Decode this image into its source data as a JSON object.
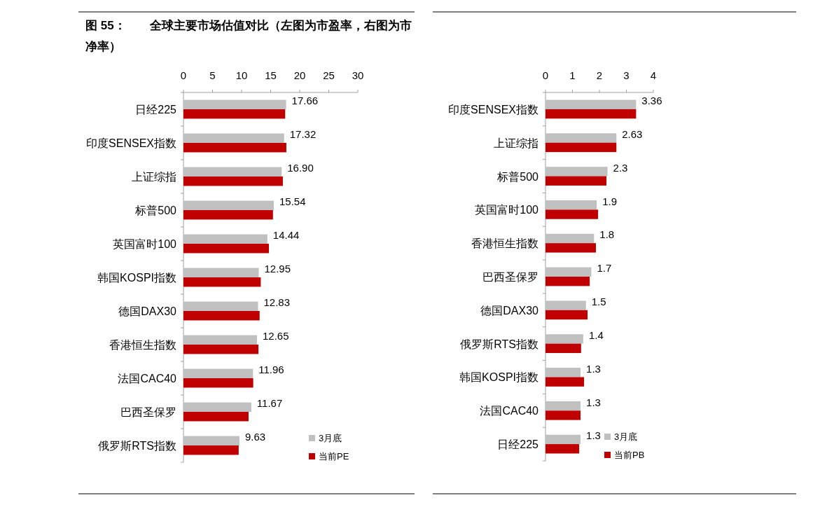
{
  "chart_data": [
    {
      "type": "bar",
      "orientation": "horizontal",
      "title": "图 55：　　全球主要市场估值对比（左图为市盈率，右图为市净率）",
      "categories": [
        "日经225",
        "印度SENSEX指数",
        "上证综指",
        "标普500",
        "英国富时100",
        "韩国KOSPI指数",
        "德国DAX30",
        "香港恒生指数",
        "法国CAC40",
        "巴西圣保罗",
        "俄罗斯RTS指数"
      ],
      "series": [
        {
          "name": "3月底",
          "color": "#c0c0c0",
          "values": [
            17.66,
            17.32,
            16.9,
            15.54,
            14.44,
            12.95,
            12.83,
            12.65,
            11.96,
            11.67,
            9.63
          ],
          "value_labels": [
            "17.66",
            "17.32",
            "16.90",
            "15.54",
            "14.44",
            "12.95",
            "12.83",
            "12.65",
            "11.96",
            "11.67",
            "9.63"
          ]
        },
        {
          "name": "当前PE",
          "color": "#c00000",
          "values": [
            17.5,
            17.7,
            17.1,
            15.4,
            14.7,
            13.3,
            13.1,
            12.9,
            12.0,
            11.2,
            9.5
          ]
        }
      ],
      "xlim": [
        0,
        30
      ],
      "xticks": [
        0,
        5,
        10,
        15,
        20,
        25,
        30
      ],
      "legend": "bottom right",
      "grid": false
    },
    {
      "type": "bar",
      "orientation": "horizontal",
      "categories": [
        "印度SENSEX指数",
        "上证综指",
        "标普500",
        "英国富时100",
        "香港恒生指数",
        "巴西圣保罗",
        "德国DAX30",
        "俄罗斯RTS指数",
        "韩国KOSPI指数",
        "法国CAC40",
        "日经225"
      ],
      "series": [
        {
          "name": "3月底",
          "color": "#c0c0c0",
          "values": [
            3.36,
            2.63,
            2.3,
            1.9,
            1.8,
            1.7,
            1.5,
            1.4,
            1.3,
            1.3,
            1.3
          ],
          "value_labels": [
            "3.36",
            "2.63",
            "2.3",
            "1.9",
            "1.8",
            "1.7",
            "1.5",
            "1.4",
            "1.3",
            "1.3",
            "1.3"
          ]
        },
        {
          "name": "当前PB",
          "color": "#c00000",
          "values": [
            3.36,
            2.63,
            2.26,
            1.95,
            1.87,
            1.64,
            1.56,
            1.32,
            1.43,
            1.3,
            1.25
          ]
        }
      ],
      "xlim": [
        0,
        4
      ],
      "xticks": [
        0,
        1,
        2,
        3,
        4
      ],
      "legend": "bottom right",
      "grid": false
    }
  ]
}
